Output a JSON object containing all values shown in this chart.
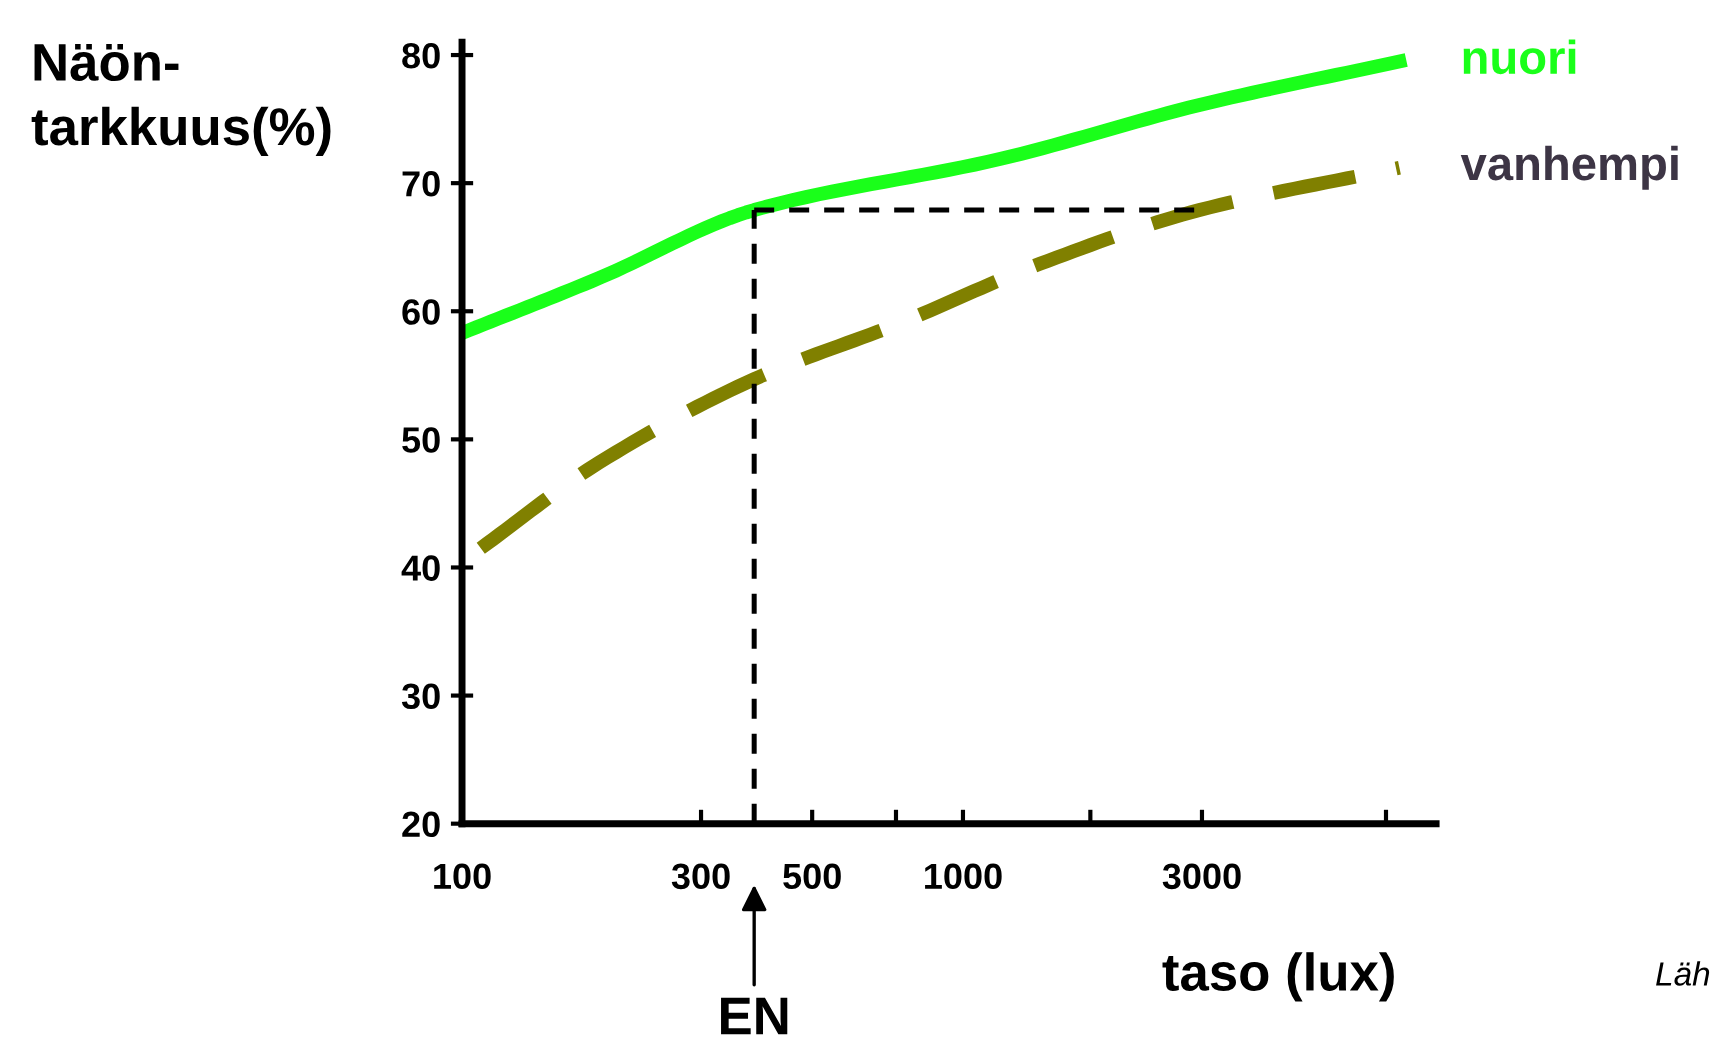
{
  "chart_data": {
    "type": "line",
    "ylabel": "Näön-\ntarkkuus(%)",
    "xlabel": "taso (lux)",
    "log": "x",
    "xlim": [
      100,
      8800
    ],
    "ylim": [
      20,
      81
    ],
    "xticks": [
      100,
      300,
      500,
      1000,
      3000,
      {
        "value": 735,
        "label": null
      },
      {
        "value": 1796,
        "label": null
      },
      {
        "value": 6990,
        "label": null
      }
    ],
    "yticks": [
      20,
      30,
      40,
      50,
      60,
      70,
      80
    ],
    "series": [
      {
        "name": "nuori",
        "color": "#1aff1a",
        "line_style": "solid",
        "x": [
          100,
          188,
          383,
          1190,
          2966,
          7436
        ],
        "values": [
          58.3,
          62.6,
          67.9,
          71.9,
          76.1,
          79.5
        ]
      },
      {
        "name": "vanhempi",
        "color": "#808000",
        "line_style": "dashed",
        "x": [
          109,
          188,
          383,
          751,
          1424,
          2966,
          7436
        ],
        "values": [
          41.5,
          48.2,
          54.7,
          59.1,
          63.7,
          67.9,
          71.2
        ]
      }
    ],
    "ref_lines": [
      {
        "axis": "x",
        "value": 383,
        "label": "EN",
        "color": "#000000",
        "line_style": "dashed"
      },
      {
        "axis": "y",
        "value": 67.9,
        "label": null,
        "color": "#000000",
        "line_style": "dashed"
      }
    ],
    "annotations": [
      "Läh"
    ],
    "grid": false,
    "marker": "none"
  }
}
